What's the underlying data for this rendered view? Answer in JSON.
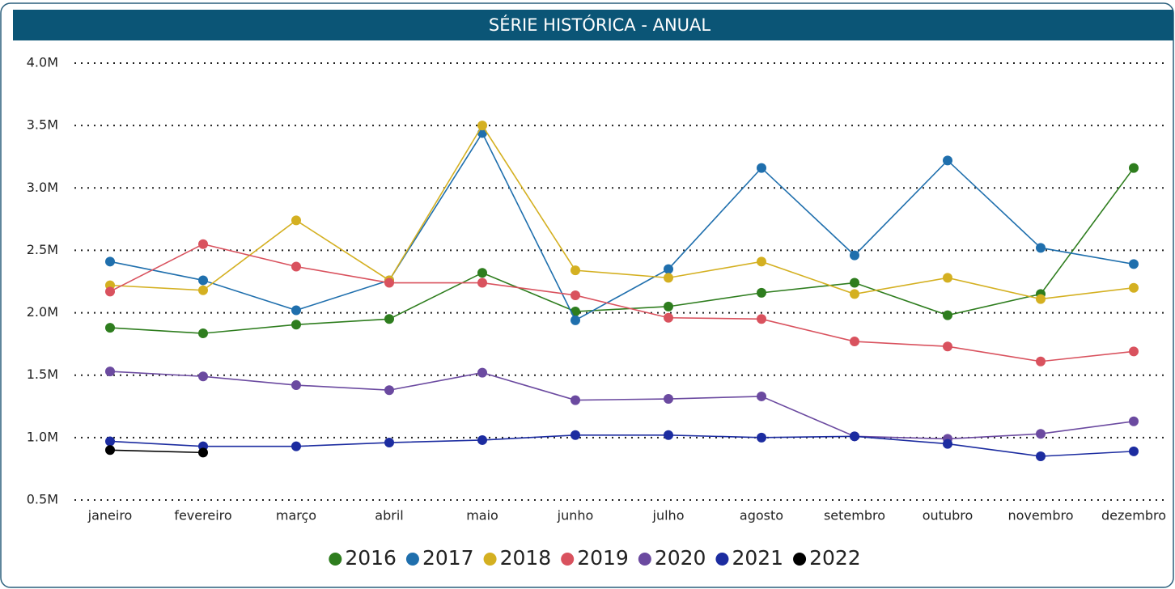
{
  "chart_data": {
    "type": "line",
    "title": "SÉRIE HISTÓRICA - ANUAL",
    "categories": [
      "janeiro",
      "fevereiro",
      "março",
      "abril",
      "maio",
      "junho",
      "julho",
      "agosto",
      "setembro",
      "outubro",
      "novembro",
      "dezembro"
    ],
    "ylim": [
      500000,
      4000000
    ],
    "yticks": [
      {
        "value": 500000,
        "label": "0.5M"
      },
      {
        "value": 1000000,
        "label": "1.0M"
      },
      {
        "value": 1500000,
        "label": "1.5M"
      },
      {
        "value": 2000000,
        "label": "2.0M"
      },
      {
        "value": 2500000,
        "label": "2.5M"
      },
      {
        "value": 3000000,
        "label": "3.0M"
      },
      {
        "value": 3500000,
        "label": "3.5M"
      },
      {
        "value": 4000000,
        "label": "4.0M"
      }
    ],
    "grid": true,
    "legend": "bottom",
    "series": [
      {
        "name": "2016",
        "color": "#2e7d1e",
        "values": [
          1880000,
          1835000,
          1905000,
          1950000,
          2320000,
          2010000,
          2050000,
          2160000,
          2240000,
          1980000,
          2150000,
          3160000
        ]
      },
      {
        "name": "2017",
        "color": "#1f6fad",
        "values": [
          2410000,
          2260000,
          2020000,
          2260000,
          3440000,
          1940000,
          2350000,
          3160000,
          2460000,
          3220000,
          2520000,
          2390000
        ]
      },
      {
        "name": "2018",
        "color": "#d4b021",
        "values": [
          2220000,
          2180000,
          2740000,
          2260000,
          3500000,
          2340000,
          2280000,
          2410000,
          2150000,
          2280000,
          2110000,
          2200000
        ]
      },
      {
        "name": "2019",
        "color": "#d9525e",
        "values": [
          2170000,
          2550000,
          2370000,
          2240000,
          2240000,
          2140000,
          1960000,
          1950000,
          1770000,
          1730000,
          1610000,
          1690000
        ]
      },
      {
        "name": "2020",
        "color": "#6b4aa0",
        "values": [
          1530000,
          1490000,
          1420000,
          1380000,
          1520000,
          1300000,
          1310000,
          1330000,
          1010000,
          990000,
          1030000,
          1130000
        ]
      },
      {
        "name": "2021",
        "color": "#1c2ca0",
        "values": [
          970000,
          930000,
          930000,
          960000,
          980000,
          1020000,
          1020000,
          1000000,
          1010000,
          950000,
          850000,
          890000
        ]
      },
      {
        "name": "2022",
        "color": "#000000",
        "values": [
          900000,
          880000,
          null,
          null,
          null,
          null,
          null,
          null,
          null,
          null,
          null,
          null
        ]
      }
    ]
  }
}
